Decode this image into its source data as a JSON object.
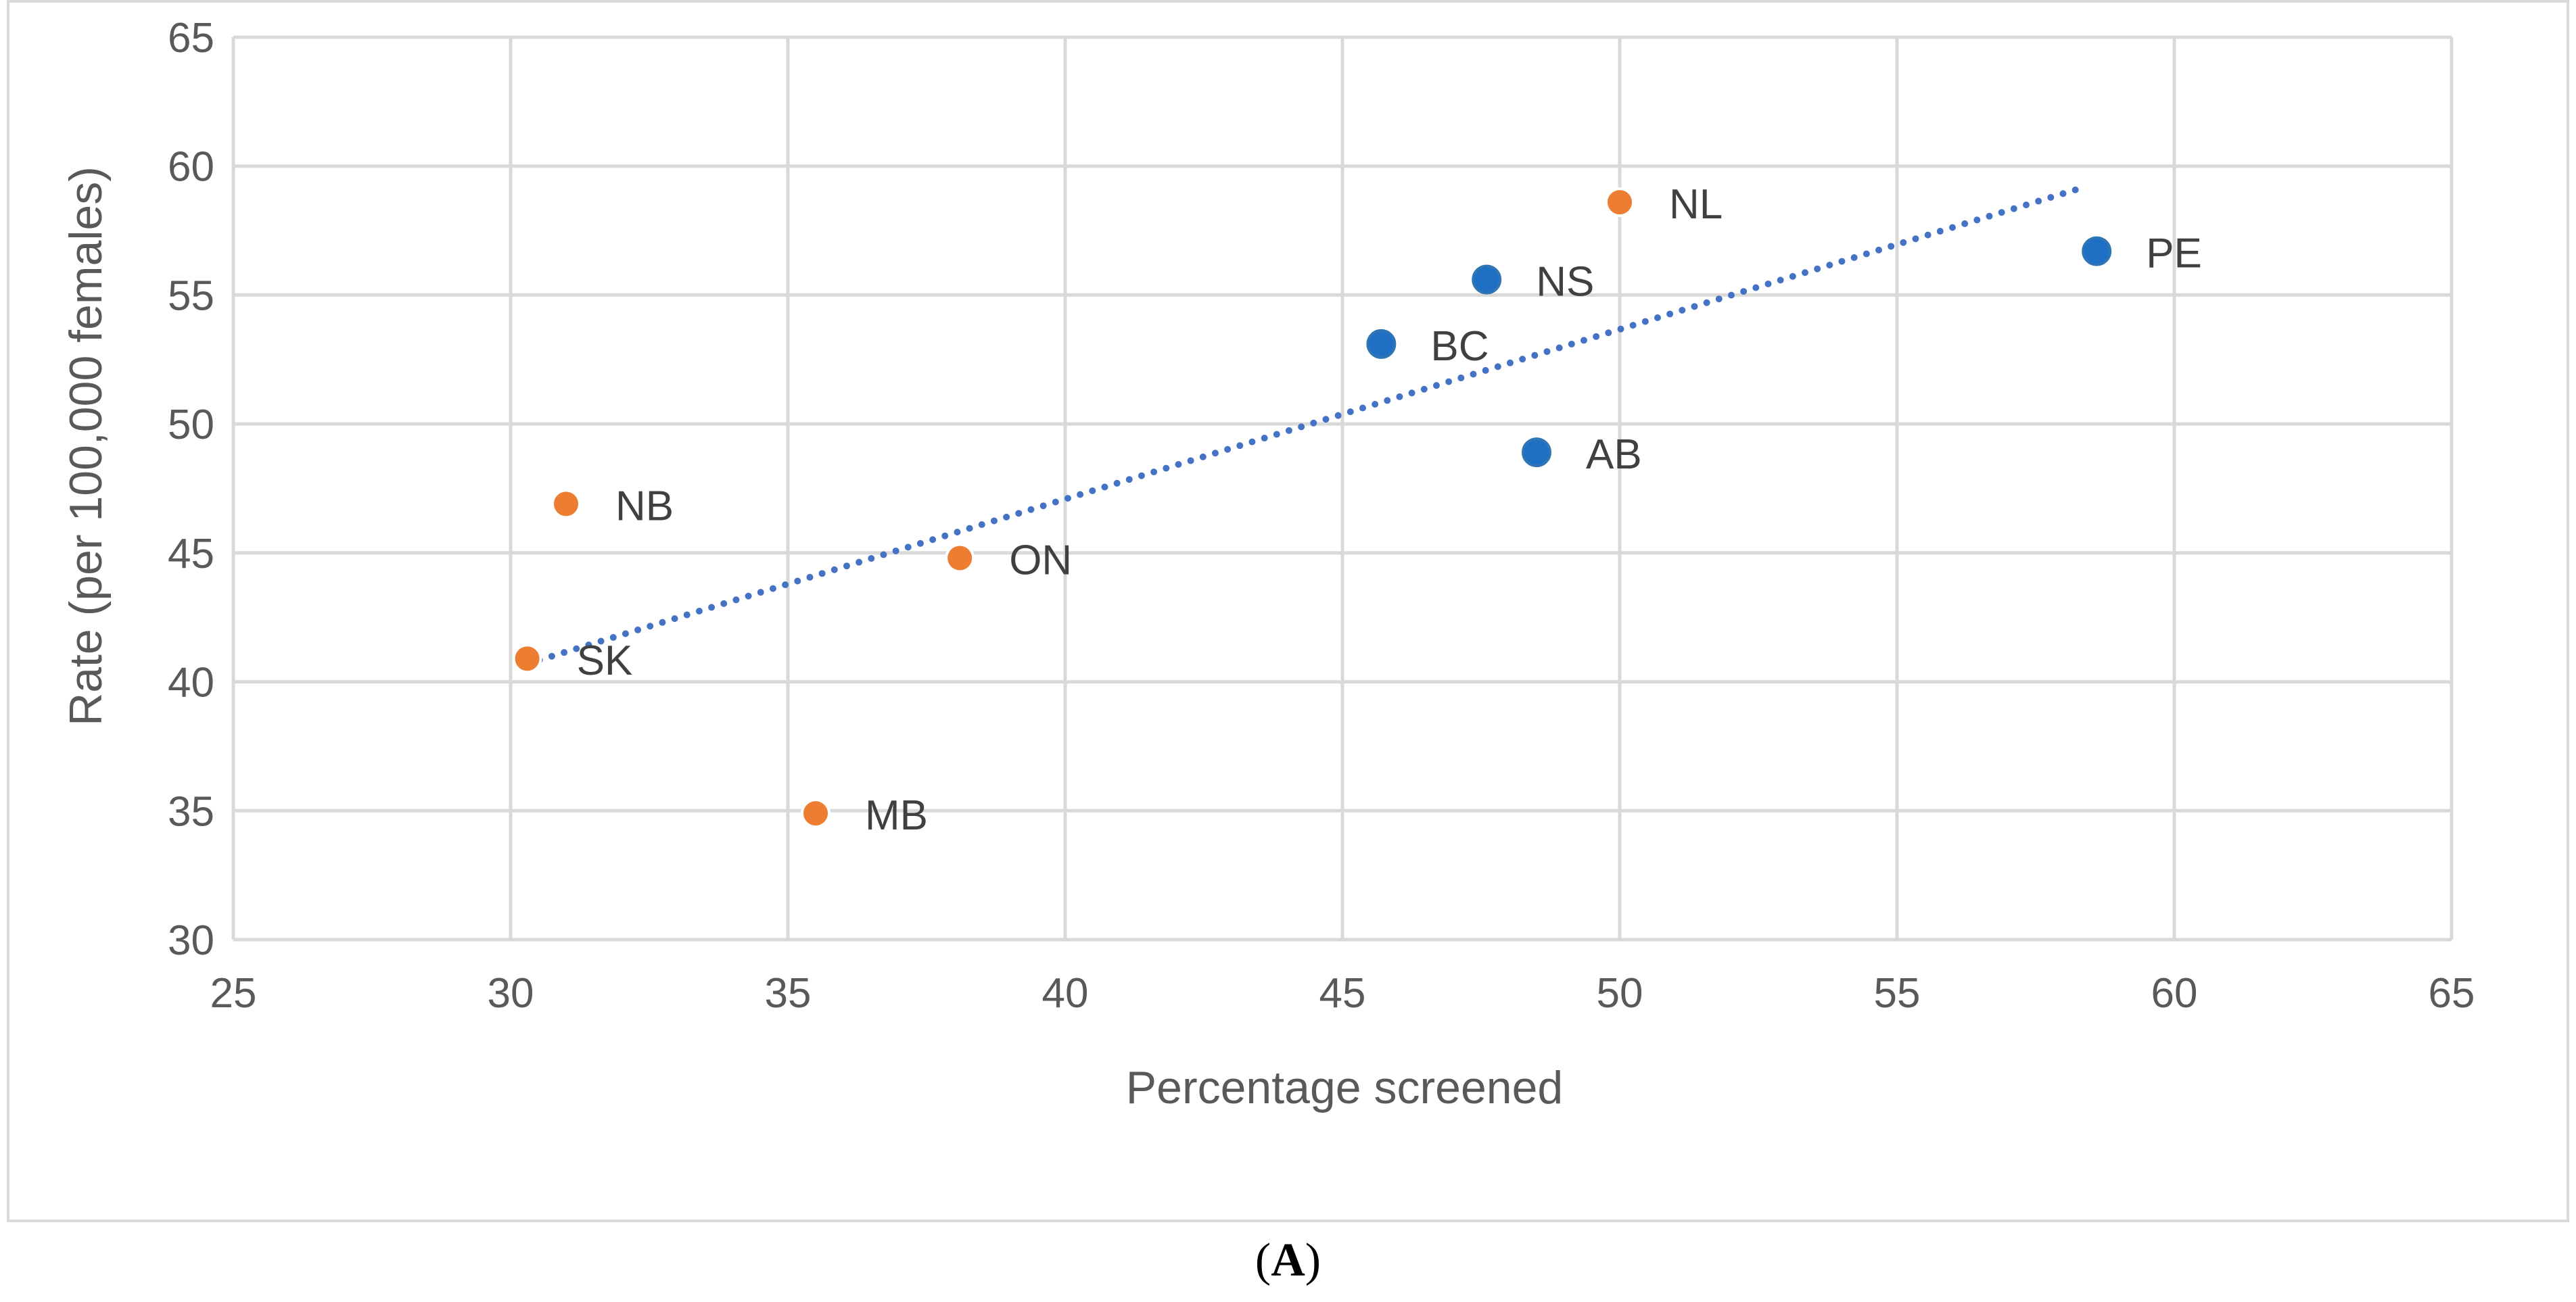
{
  "chart_data": {
    "type": "scatter",
    "title": "",
    "xlabel": "Percentage screened",
    "ylabel": "Rate (per 100,000 females)",
    "xlim": [
      25,
      65
    ],
    "ylim": [
      30,
      65
    ],
    "xticks": [
      25,
      30,
      35,
      40,
      45,
      50,
      55,
      60,
      65
    ],
    "yticks": [
      30,
      35,
      40,
      45,
      50,
      55,
      60,
      65
    ],
    "grid": true,
    "legend": "none",
    "colors": {
      "orange": "#ED7D31",
      "blue": "#1F6FC5",
      "trend": "#4472C4",
      "grid": "#d9d9d9",
      "text": "#595959"
    },
    "points": [
      {
        "label": "NL",
        "x": 50.0,
        "y": 58.6,
        "color": "orange"
      },
      {
        "label": "PE",
        "x": 58.6,
        "y": 56.7,
        "color": "blue"
      },
      {
        "label": "NS",
        "x": 47.6,
        "y": 55.6,
        "color": "blue"
      },
      {
        "label": "BC",
        "x": 45.7,
        "y": 53.1,
        "color": "blue"
      },
      {
        "label": "AB",
        "x": 48.5,
        "y": 48.9,
        "color": "blue"
      },
      {
        "label": "NB",
        "x": 31.0,
        "y": 46.9,
        "color": "orange"
      },
      {
        "label": "ON",
        "x": 38.1,
        "y": 44.8,
        "color": "orange"
      },
      {
        "label": "SK",
        "x": 30.3,
        "y": 40.9,
        "color": "orange"
      },
      {
        "label": "MB",
        "x": 35.5,
        "y": 34.9,
        "color": "orange"
      }
    ],
    "trendline": {
      "style": "dotted",
      "x": [
        30.3,
        58.4
      ],
      "y": [
        40.7,
        59.2
      ]
    }
  },
  "caption": {
    "open": "(",
    "letter": "A",
    "close": ")"
  }
}
